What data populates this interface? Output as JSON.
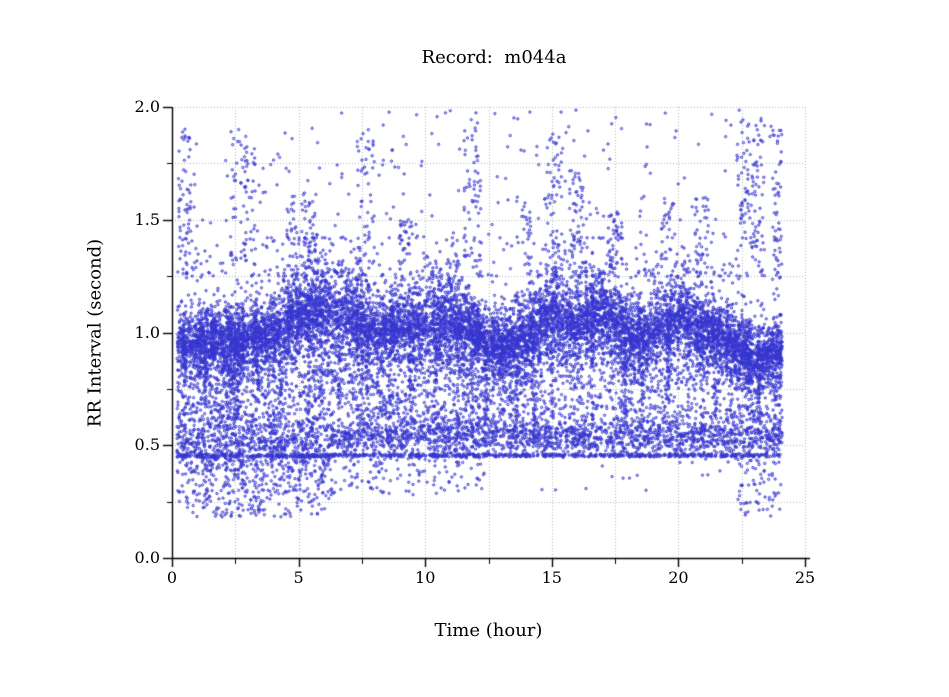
{
  "chart_data": {
    "type": "scatter",
    "title": "Record:  m044a",
    "xlabel": "Time (hour)",
    "ylabel": "RR Interval (second)",
    "xlim": [
      0,
      25
    ],
    "ylim": [
      0.0,
      2.0
    ],
    "x_tick_labels": [
      "0",
      "5",
      "10",
      "15",
      "20",
      "25"
    ],
    "x_tick_values": [
      0,
      5,
      10,
      15,
      20,
      25
    ],
    "x_minor_step": 2.5,
    "y_tick_labels": [
      "0.0",
      "0.5",
      "1.0",
      "1.5",
      "2.0"
    ],
    "y_tick_values": [
      0,
      0.5,
      1.0,
      1.5,
      2.0
    ],
    "y_minor_step": 0.25,
    "grid": {
      "style": "dotted",
      "color": "#b8b8b8",
      "x_interval": 2.5,
      "y_interval": 0.25
    },
    "axis_color": "#000000",
    "marker": {
      "shape": "open-circle",
      "color": "#3030cd",
      "radius_px": 1.15
    },
    "legend": "none",
    "data_time_range": [
      0.2,
      24.1
    ],
    "seed": 42,
    "main_band": {
      "t_hours": [
        0,
        1,
        2,
        3,
        4,
        5,
        6,
        7,
        8,
        9,
        10,
        11,
        12,
        13,
        14,
        15,
        16,
        17,
        18,
        19,
        20,
        21,
        22,
        23,
        24
      ],
      "center_s": [
        0.95,
        0.96,
        0.96,
        0.97,
        1.0,
        1.08,
        1.1,
        1.07,
        1.0,
        1.02,
        1.04,
        1.06,
        1.0,
        0.93,
        0.97,
        1.1,
        1.03,
        1.1,
        0.97,
        1.0,
        1.06,
        1.0,
        0.97,
        0.88,
        0.92
      ],
      "halfwidth_s": [
        0.09,
        0.1,
        0.11,
        0.09,
        0.1,
        0.13,
        0.13,
        0.13,
        0.11,
        0.12,
        0.13,
        0.14,
        0.1,
        0.09,
        0.12,
        0.14,
        0.12,
        0.13,
        0.1,
        0.11,
        0.13,
        0.11,
        0.1,
        0.08,
        0.09
      ],
      "core_points": 6500,
      "column_count": 700,
      "column_points": 5,
      "down_fuzz_points": 1200,
      "up_fuzz_points": 640
    },
    "down_spikes": {
      "points_per_column": 26,
      "columns": [
        [
          0.5,
          0.62
        ],
        [
          1.3,
          0.68
        ],
        [
          2.3,
          0.55
        ],
        [
          2.45,
          0.58
        ],
        [
          2.6,
          0.62
        ],
        [
          3.4,
          0.68
        ],
        [
          4.3,
          0.62
        ],
        [
          5.4,
          0.6
        ],
        [
          5.9,
          0.62
        ],
        [
          6.6,
          0.65
        ],
        [
          7.7,
          0.52
        ],
        [
          8.6,
          0.6
        ],
        [
          9.4,
          0.65
        ],
        [
          10.4,
          0.58
        ],
        [
          11.3,
          0.55
        ],
        [
          11.85,
          0.48
        ],
        [
          12.4,
          0.6
        ],
        [
          13.35,
          0.46
        ],
        [
          13.6,
          0.55
        ],
        [
          14.3,
          0.55
        ],
        [
          15.0,
          0.62
        ],
        [
          16.6,
          0.58
        ],
        [
          17.9,
          0.65
        ],
        [
          18.6,
          0.6
        ],
        [
          19.6,
          0.65
        ],
        [
          21.0,
          0.48
        ],
        [
          21.45,
          0.58
        ],
        [
          22.1,
          0.62
        ],
        [
          23.2,
          0.6
        ],
        [
          23.85,
          0.58
        ]
      ]
    },
    "mid_scatter": {
      "count": 1700,
      "y_band": [
        0.56,
        0.84
      ],
      "late_thinning_after_hour": 13.2,
      "late_keep_fraction": 0.5
    },
    "bottom_band": {
      "core_count": 2400,
      "center_early_s": 0.52,
      "sigma_early": 0.055,
      "center_late_s": 0.535,
      "sigma_late": 0.042,
      "early_until_hour": 6,
      "y_clamp": [
        0.452,
        0.64
      ],
      "line_y": [
        0.448,
        0.462
      ],
      "line_count": 650
    },
    "low_outliers": {
      "early": {
        "t": [
          0.2,
          6.2
        ],
        "y_top": 0.45,
        "y_span": 0.27,
        "count": 520
      },
      "mid": {
        "t": [
          6.2,
          12.5
        ],
        "y_top": 0.45,
        "y_span": 0.17,
        "count": 140
      },
      "late": {
        "t": [
          22.3,
          24.1
        ],
        "y_top": 0.45,
        "y_span": 0.27,
        "count": 70
      },
      "sparse": {
        "t": [
          12.5,
          22.3
        ],
        "y": [
          0.3,
          0.45
        ],
        "count": 18
      }
    },
    "high_outliers": {
      "uniform_count": 420,
      "y_base": 1.25,
      "y_span": 0.75,
      "clusters": [
        [
          0.25,
          0.75,
          1.3,
          1.95,
          55
        ],
        [
          2.3,
          3.3,
          1.3,
          1.9,
          65
        ],
        [
          4.5,
          5.7,
          1.28,
          1.62,
          70
        ],
        [
          7.3,
          8.0,
          1.3,
          1.9,
          45
        ],
        [
          9.0,
          9.5,
          1.3,
          1.5,
          25
        ],
        [
          11.5,
          12.2,
          1.3,
          1.95,
          55
        ],
        [
          13.8,
          14.2,
          1.3,
          1.6,
          20
        ],
        [
          14.7,
          15.4,
          1.3,
          1.9,
          45
        ],
        [
          15.7,
          16.3,
          1.28,
          1.72,
          55
        ],
        [
          17.2,
          17.8,
          1.28,
          1.55,
          45
        ],
        [
          19.3,
          19.9,
          1.3,
          1.6,
          25
        ],
        [
          20.6,
          21.2,
          1.3,
          1.6,
          30
        ],
        [
          22.3,
          23.4,
          1.35,
          1.95,
          95
        ],
        [
          23.7,
          24.1,
          1.3,
          1.9,
          45
        ]
      ]
    }
  }
}
